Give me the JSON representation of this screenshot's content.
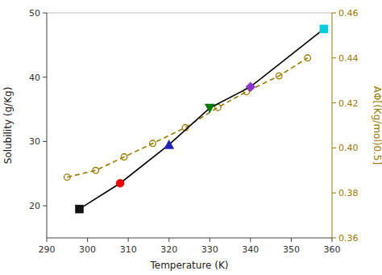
{
  "chart_data": {
    "type": "line",
    "xlabel": "Temperature (K)",
    "ylabel": "Solubility (g/Kg)",
    "y2label": "AΦ[(Kg/mol)0.5]",
    "xlim": [
      290,
      360
    ],
    "xticks": [
      290,
      300,
      310,
      320,
      330,
      340,
      350,
      360
    ],
    "ylim": [
      15,
      50
    ],
    "yticks": [
      20,
      30,
      40,
      50
    ],
    "y2lim": [
      0.36,
      0.46
    ],
    "y2ticks": [
      0.36,
      0.38,
      {
        "value": 0.4,
        "label": "0.40"
      },
      0.42,
      0.44,
      0.46
    ],
    "grid": false,
    "series": [
      {
        "x": [
          298,
          308,
          320,
          330,
          340,
          358
        ],
        "values": [
          19.5,
          23.5,
          29.5,
          35.2,
          38.5,
          47.5
        ],
        "color": "black",
        "line_style": "solid",
        "marker": [
          "square",
          "circle",
          "triangle-up",
          "triangle-down",
          "diamond",
          "square"
        ],
        "colors": [
          "#111111",
          "#ee0000",
          "#2222bb",
          "#007700",
          "#8833cc",
          "#00ccdd"
        ]
      },
      {
        "x": [
          295,
          302,
          309,
          316,
          324,
          332,
          339,
          347,
          354
        ],
        "values": [
          0.387,
          0.39,
          0.396,
          0.402,
          0.409,
          0.418,
          0.425,
          0.432,
          0.44
        ],
        "color": "#9b7a00",
        "line_style": "dashed",
        "marker": "circle-open",
        "axis": "y2"
      }
    ]
  }
}
